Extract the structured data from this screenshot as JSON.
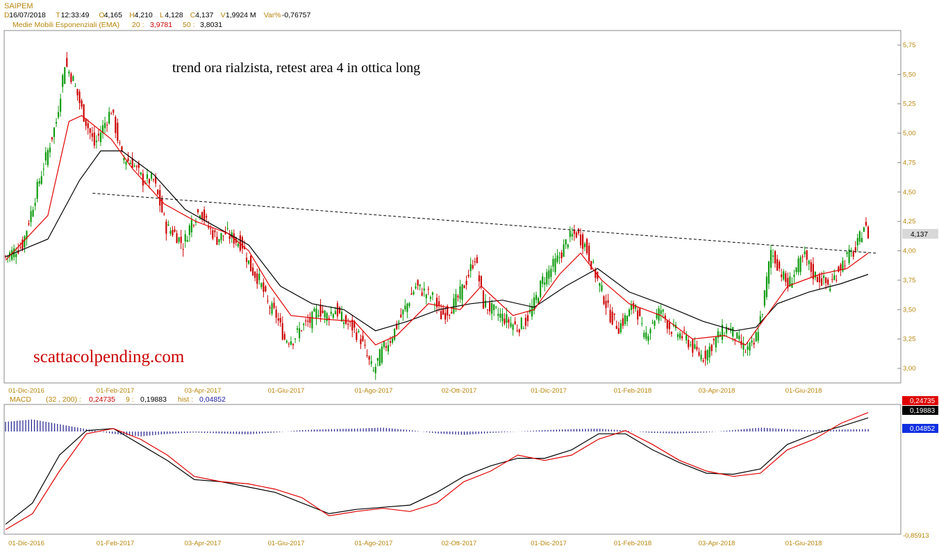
{
  "header": {
    "symbol": "SAIPEM",
    "ohlc": [
      {
        "key": "D",
        "value": "16/07/2018"
      },
      {
        "key": "T",
        "value": "12:33:49"
      },
      {
        "key": "O",
        "value": "4,165"
      },
      {
        "key": "H",
        "value": "4,210"
      },
      {
        "key": "L",
        "value": "4,128"
      },
      {
        "key": "C",
        "value": "4,137"
      },
      {
        "key": "V",
        "value": "1,9924 M"
      },
      {
        "key": "Var%",
        "value": "-0,76757"
      }
    ],
    "ema_label": "Medie Mobili Esponenziali (EMA)",
    "ema_20_label": "20 :",
    "ema_20_value": "3,9781",
    "ema_50_label": "50 :",
    "ema_50_value": "3,8031"
  },
  "annotations": {
    "trend_text": "trend ora rialzista, retest area 4 in ottica long",
    "watermark": "scattacolpending.com"
  },
  "colors": {
    "up": "#0a9a0a",
    "down": "#cc0000",
    "ema20": "#e00000",
    "ema50": "#000000",
    "axis_text": "#b8860b",
    "macd_hist": "#1a1a8c"
  },
  "last_price_label": "4,137",
  "macd_panel": {
    "label": "MACD",
    "params": "(32 , 200) :",
    "macd_value": "0,24735",
    "signal_label": "9 :",
    "signal_value": "0,19883",
    "hist_label": "hist :",
    "hist_value": "0,04852",
    "badge_macd": "0,24735",
    "badge_signal": "0,19883",
    "badge_hist": "0,04852",
    "min_label": "-0,85913"
  },
  "chart_data": [
    {
      "type": "candlestick",
      "title": "SAIPEM",
      "y_ticks": [
        "3,00",
        "3,25",
        "3,50",
        "3,75",
        "4,00",
        "4,25",
        "4,50",
        "4,75",
        "5,00",
        "5,25",
        "5,50",
        "5,75"
      ],
      "ylim": [
        2.9,
        5.85
      ],
      "x_tick_labels": [
        "01-Dic-2016",
        "01-Feb-2017",
        "03-Apr-2017",
        "01-Giu-2017",
        "01-Ago-2017",
        "02-Ott-2017",
        "01-Dic-2017",
        "01-Feb-2018",
        "03-Apr-2018",
        "01-Giu-2018"
      ],
      "closes": [
        [
          0,
          3.95
        ],
        [
          8,
          4.05
        ],
        [
          16,
          4.6
        ],
        [
          24,
          5.1
        ],
        [
          28,
          5.6
        ],
        [
          32,
          5.45
        ],
        [
          36,
          5.2
        ],
        [
          42,
          4.9
        ],
        [
          50,
          5.2
        ],
        [
          55,
          4.8
        ],
        [
          60,
          4.75
        ],
        [
          65,
          4.6
        ],
        [
          70,
          4.6
        ],
        [
          73,
          4.4
        ],
        [
          76,
          4.2
        ],
        [
          80,
          4.15
        ],
        [
          84,
          4.05
        ],
        [
          88,
          4.25
        ],
        [
          92,
          4.35
        ],
        [
          96,
          4.2
        ],
        [
          100,
          4.1
        ],
        [
          104,
          4.15
        ],
        [
          108,
          4.1
        ],
        [
          112,
          4.05
        ],
        [
          116,
          3.85
        ],
        [
          120,
          3.75
        ],
        [
          124,
          3.55
        ],
        [
          128,
          3.45
        ],
        [
          132,
          3.25
        ],
        [
          136,
          3.25
        ],
        [
          140,
          3.35
        ],
        [
          144,
          3.4
        ],
        [
          148,
          3.5
        ],
        [
          152,
          3.45
        ],
        [
          156,
          3.5
        ],
        [
          160,
          3.4
        ],
        [
          164,
          3.35
        ],
        [
          168,
          3.25
        ],
        [
          172,
          3.05
        ],
        [
          174,
          2.97
        ],
        [
          178,
          3.15
        ],
        [
          182,
          3.25
        ],
        [
          186,
          3.4
        ],
        [
          190,
          3.55
        ],
        [
          194,
          3.7
        ],
        [
          198,
          3.65
        ],
        [
          202,
          3.6
        ],
        [
          206,
          3.45
        ],
        [
          210,
          3.5
        ],
        [
          214,
          3.6
        ],
        [
          218,
          3.75
        ],
        [
          222,
          3.95
        ],
        [
          226,
          3.55
        ],
        [
          230,
          3.5
        ],
        [
          234,
          3.45
        ],
        [
          238,
          3.4
        ],
        [
          242,
          3.35
        ],
        [
          246,
          3.4
        ],
        [
          250,
          3.55
        ],
        [
          254,
          3.75
        ],
        [
          258,
          3.85
        ],
        [
          262,
          3.95
        ],
        [
          266,
          4.1
        ],
        [
          270,
          4.15
        ],
        [
          274,
          4.05
        ],
        [
          278,
          3.85
        ],
        [
          282,
          3.65
        ],
        [
          286,
          3.45
        ],
        [
          290,
          3.35
        ],
        [
          294,
          3.45
        ],
        [
          298,
          3.55
        ],
        [
          302,
          3.25
        ],
        [
          306,
          3.4
        ],
        [
          310,
          3.5
        ],
        [
          314,
          3.35
        ],
        [
          318,
          3.3
        ],
        [
          322,
          3.25
        ],
        [
          326,
          3.15
        ],
        [
          330,
          3.1
        ],
        [
          334,
          3.2
        ],
        [
          338,
          3.3
        ],
        [
          342,
          3.35
        ],
        [
          346,
          3.25
        ],
        [
          350,
          3.15
        ],
        [
          354,
          3.2
        ],
        [
          358,
          3.5
        ],
        [
          362,
          4.0
        ],
        [
          366,
          3.85
        ],
        [
          370,
          3.7
        ],
        [
          374,
          3.85
        ],
        [
          378,
          3.95
        ],
        [
          382,
          3.8
        ],
        [
          386,
          3.75
        ],
        [
          390,
          3.7
        ],
        [
          394,
          3.85
        ],
        [
          398,
          3.95
        ],
        [
          402,
          4.0
        ],
        [
          406,
          4.22
        ],
        [
          408,
          4.14
        ]
      ],
      "ema20": [
        [
          0,
          3.92
        ],
        [
          20,
          4.3
        ],
        [
          30,
          5.1
        ],
        [
          36,
          5.15
        ],
        [
          50,
          4.95
        ],
        [
          60,
          4.7
        ],
        [
          75,
          4.4
        ],
        [
          90,
          4.25
        ],
        [
          105,
          4.15
        ],
        [
          115,
          4.0
        ],
        [
          125,
          3.7
        ],
        [
          135,
          3.45
        ],
        [
          150,
          3.42
        ],
        [
          165,
          3.4
        ],
        [
          175,
          3.2
        ],
        [
          185,
          3.28
        ],
        [
          200,
          3.55
        ],
        [
          215,
          3.5
        ],
        [
          225,
          3.7
        ],
        [
          240,
          3.45
        ],
        [
          250,
          3.5
        ],
        [
          262,
          3.8
        ],
        [
          272,
          3.98
        ],
        [
          282,
          3.75
        ],
        [
          295,
          3.55
        ],
        [
          310,
          3.45
        ],
        [
          325,
          3.25
        ],
        [
          340,
          3.28
        ],
        [
          350,
          3.2
        ],
        [
          360,
          3.45
        ],
        [
          370,
          3.7
        ],
        [
          385,
          3.8
        ],
        [
          398,
          3.85
        ],
        [
          408,
          3.98
        ]
      ],
      "ema50": [
        [
          0,
          3.95
        ],
        [
          20,
          4.1
        ],
        [
          35,
          4.6
        ],
        [
          45,
          4.85
        ],
        [
          55,
          4.85
        ],
        [
          70,
          4.65
        ],
        [
          85,
          4.35
        ],
        [
          100,
          4.2
        ],
        [
          115,
          4.05
        ],
        [
          130,
          3.7
        ],
        [
          145,
          3.55
        ],
        [
          160,
          3.5
        ],
        [
          175,
          3.32
        ],
        [
          190,
          3.4
        ],
        [
          205,
          3.5
        ],
        [
          220,
          3.55
        ],
        [
          235,
          3.58
        ],
        [
          250,
          3.52
        ],
        [
          265,
          3.7
        ],
        [
          280,
          3.85
        ],
        [
          295,
          3.65
        ],
        [
          310,
          3.55
        ],
        [
          330,
          3.4
        ],
        [
          345,
          3.32
        ],
        [
          355,
          3.35
        ],
        [
          365,
          3.55
        ],
        [
          380,
          3.65
        ],
        [
          395,
          3.72
        ],
        [
          408,
          3.8
        ]
      ],
      "trendline": [
        [
          0.1,
          4.49
        ],
        [
          1.0,
          3.98
        ]
      ]
    },
    {
      "type": "line",
      "title": "MACD (32 , 200)",
      "series": [
        {
          "name": "MACD",
          "values": [
            -0.85,
            -0.7,
            -0.3,
            0.05,
            0.1,
            0.0,
            -0.15,
            -0.35,
            -0.4,
            -0.42,
            -0.47,
            -0.55,
            -0.72,
            -0.68,
            -0.65,
            -0.68,
            -0.6,
            -0.4,
            -0.3,
            -0.15,
            -0.2,
            -0.15,
            0.0,
            0.08,
            -0.05,
            -0.2,
            -0.3,
            -0.35,
            -0.32,
            -0.1,
            0.0,
            0.15,
            0.25
          ]
        },
        {
          "name": "Signal",
          "values": [
            -0.8,
            -0.6,
            -0.15,
            0.08,
            0.1,
            -0.05,
            -0.2,
            -0.38,
            -0.4,
            -0.45,
            -0.5,
            -0.6,
            -0.7,
            -0.66,
            -0.64,
            -0.62,
            -0.5,
            -0.35,
            -0.25,
            -0.18,
            -0.18,
            -0.1,
            0.05,
            0.05,
            -0.1,
            -0.22,
            -0.32,
            -0.33,
            -0.28,
            -0.05,
            0.05,
            0.12,
            0.2
          ]
        },
        {
          "name": "hist",
          "values": [
            0.2,
            0.25,
            0.15,
            0.05,
            -0.05,
            -0.1,
            -0.05,
            -0.02,
            -0.04,
            -0.06,
            -0.02,
            0.03,
            0.05,
            0.06,
            0.08,
            0.03,
            -0.04,
            -0.07,
            -0.03,
            0.0,
            0.03,
            0.05,
            0.06,
            0.02,
            -0.03,
            -0.04,
            -0.02,
            0.03,
            0.08,
            0.05,
            0.02,
            0.04,
            0.05
          ]
        }
      ],
      "min_tick": "-0,85913"
    }
  ]
}
